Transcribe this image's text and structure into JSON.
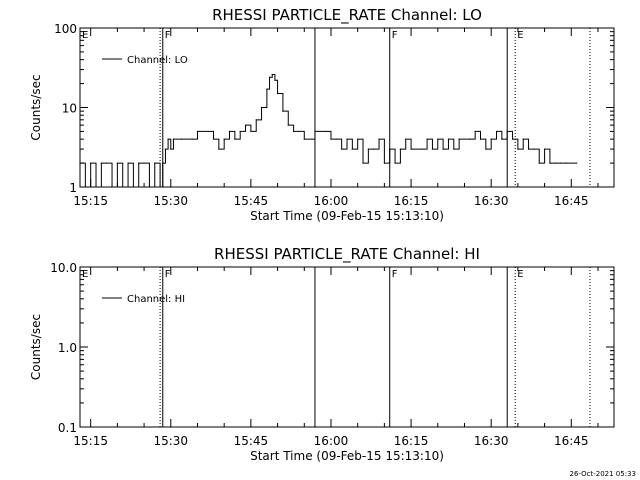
{
  "footer": {
    "timestamp": "26-Oct-2021 05:33"
  },
  "colors": {
    "background": "#ffffff",
    "foreground": "#000000"
  },
  "chart_data": [
    {
      "type": "line",
      "title": "RHESSI PARTICLE_RATE Channel: LO",
      "xlabel": "Start Time (09-Feb-15 15:13:10)",
      "ylabel": "Counts/sec",
      "yscale": "log",
      "xlim": [
        "15:13:00",
        "16:53:00"
      ],
      "ylim": [
        1,
        100
      ],
      "x_ticks": [
        "15:15",
        "15:30",
        "15:45",
        "16:00",
        "16:15",
        "16:30",
        "16:45"
      ],
      "y_ticks": [
        "1",
        "10",
        "100"
      ],
      "legend": {
        "placement": "top-left",
        "entries": [
          "Channel: LO"
        ]
      },
      "markers": [
        {
          "time": "15:28:00",
          "style": "dotted",
          "label": ""
        },
        {
          "time": "15:28:30",
          "style": "solid",
          "label": "F"
        },
        {
          "time": "15:57:00",
          "style": "solid",
          "label": ""
        },
        {
          "time": "16:11:00",
          "style": "solid",
          "label": "F"
        },
        {
          "time": "16:33:00",
          "style": "solid",
          "label": ""
        },
        {
          "time": "16:34:30",
          "style": "dotted",
          "label": "E"
        },
        {
          "time": "16:48:30",
          "style": "dotted",
          "label": ""
        }
      ],
      "corner_labels": [
        {
          "text": "E",
          "time": "15:13:00"
        }
      ],
      "series": [
        {
          "values": [
            [
              "15:13:00",
              2
            ],
            [
              "15:14:00",
              1
            ],
            [
              "15:15:00",
              2
            ],
            [
              "15:16:00",
              1
            ],
            [
              "15:17:00",
              2
            ],
            [
              "15:18:00",
              2
            ],
            [
              "15:19:00",
              1
            ],
            [
              "15:20:00",
              2
            ],
            [
              "15:21:00",
              1
            ],
            [
              "15:22:00",
              2
            ],
            [
              "15:23:00",
              1
            ],
            [
              "15:24:00",
              2
            ],
            [
              "15:25:00",
              2
            ],
            [
              "15:26:00",
              1
            ],
            [
              "15:27:00",
              2
            ],
            [
              "15:28:00",
              1
            ],
            [
              "15:28:30",
              2
            ],
            [
              "15:29:00",
              3
            ],
            [
              "15:29:30",
              4
            ],
            [
              "15:30:00",
              3
            ],
            [
              "15:30:30",
              4
            ],
            [
              "15:32:00",
              4
            ],
            [
              "15:34:00",
              4
            ],
            [
              "15:35:00",
              5
            ],
            [
              "15:37:00",
              5
            ],
            [
              "15:38:00",
              4
            ],
            [
              "15:39:00",
              3
            ],
            [
              "15:40:00",
              4
            ],
            [
              "15:41:00",
              5
            ],
            [
              "15:42:00",
              4
            ],
            [
              "15:43:00",
              5
            ],
            [
              "15:44:00",
              6
            ],
            [
              "15:45:00",
              5
            ],
            [
              "15:46:00",
              7
            ],
            [
              "15:47:00",
              10
            ],
            [
              "15:48:00",
              17
            ],
            [
              "15:48:30",
              24
            ],
            [
              "15:49:00",
              26
            ],
            [
              "15:49:30",
              22
            ],
            [
              "15:50:00",
              15
            ],
            [
              "15:51:00",
              9
            ],
            [
              "15:52:00",
              6
            ],
            [
              "15:53:00",
              5
            ],
            [
              "15:54:00",
              5
            ],
            [
              "15:55:00",
              4
            ],
            [
              "15:57:00",
              5
            ],
            [
              "15:59:00",
              5
            ],
            [
              "16:00:00",
              4
            ],
            [
              "16:01:00",
              4
            ],
            [
              "16:02:00",
              3
            ],
            [
              "16:03:00",
              4
            ],
            [
              "16:04:00",
              3
            ],
            [
              "16:05:00",
              4
            ],
            [
              "16:06:00",
              2
            ],
            [
              "16:07:00",
              3
            ],
            [
              "16:08:00",
              3
            ],
            [
              "16:09:00",
              4
            ],
            [
              "16:10:00",
              2
            ],
            [
              "16:11:00",
              3
            ],
            [
              "16:12:00",
              2
            ],
            [
              "16:13:00",
              3
            ],
            [
              "16:14:00",
              4
            ],
            [
              "16:15:00",
              3
            ],
            [
              "16:17:00",
              3
            ],
            [
              "16:18:00",
              4
            ],
            [
              "16:19:00",
              3
            ],
            [
              "16:20:00",
              4
            ],
            [
              "16:21:00",
              3
            ],
            [
              "16:22:00",
              4
            ],
            [
              "16:23:00",
              3
            ],
            [
              "16:24:00",
              4
            ],
            [
              "16:26:00",
              4
            ],
            [
              "16:27:00",
              5
            ],
            [
              "16:28:00",
              4
            ],
            [
              "16:29:00",
              3
            ],
            [
              "16:30:00",
              4
            ],
            [
              "16:31:00",
              5
            ],
            [
              "16:32:00",
              4
            ],
            [
              "16:33:00",
              5
            ],
            [
              "16:34:00",
              4
            ],
            [
              "16:35:00",
              3
            ],
            [
              "16:36:00",
              4
            ],
            [
              "16:37:00",
              3
            ],
            [
              "16:38:00",
              3
            ],
            [
              "16:39:00",
              2
            ],
            [
              "16:40:00",
              3
            ],
            [
              "16:41:00",
              2
            ],
            [
              "16:42:00",
              2
            ],
            [
              "16:43:00",
              2
            ],
            [
              "16:44:00",
              2
            ],
            [
              "16:46:00",
              2
            ]
          ]
        }
      ]
    },
    {
      "type": "line",
      "title": "RHESSI PARTICLE_RATE Channel: HI",
      "xlabel": "Start Time (09-Feb-15 15:13:10)",
      "ylabel": "Counts/sec",
      "yscale": "log",
      "xlim": [
        "15:13:00",
        "16:53:00"
      ],
      "ylim": [
        0.1,
        10
      ],
      "x_ticks": [
        "15:15",
        "15:30",
        "15:45",
        "16:00",
        "16:15",
        "16:30",
        "16:45"
      ],
      "y_ticks": [
        "0.1",
        "1.0",
        "10.0"
      ],
      "legend": {
        "placement": "top-left",
        "entries": [
          "Channel: HI"
        ]
      },
      "markers": [
        {
          "time": "15:28:00",
          "style": "dotted",
          "label": ""
        },
        {
          "time": "15:28:30",
          "style": "solid",
          "label": "F"
        },
        {
          "time": "15:57:00",
          "style": "solid",
          "label": ""
        },
        {
          "time": "16:11:00",
          "style": "solid",
          "label": "F"
        },
        {
          "time": "16:33:00",
          "style": "solid",
          "label": ""
        },
        {
          "time": "16:34:30",
          "style": "dotted",
          "label": "E"
        },
        {
          "time": "16:48:30",
          "style": "dotted",
          "label": ""
        }
      ],
      "corner_labels": [
        {
          "text": "E",
          "time": "15:13:00"
        }
      ],
      "series": [
        {
          "values": []
        }
      ]
    }
  ]
}
